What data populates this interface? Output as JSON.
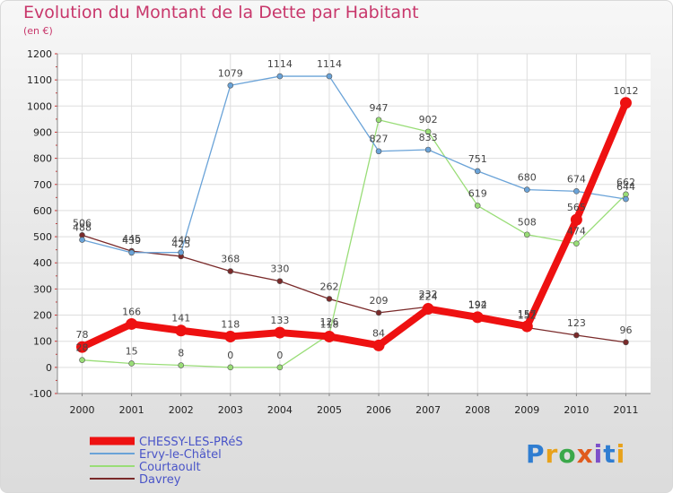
{
  "title": "Evolution du Montant de la Dette par Habitant",
  "unit_label": "(en €)",
  "logo_text": "Proxiti",
  "chart_data": {
    "type": "line",
    "title": "Evolution du Montant de la Dette par Habitant",
    "ylabel": "(en €)",
    "xlabel": "",
    "x": [
      "2000",
      "2001",
      "2002",
      "2003",
      "2004",
      "2005",
      "2006",
      "2007",
      "2008",
      "2009",
      "2010",
      "2011"
    ],
    "ylim": [
      -100,
      1200
    ],
    "yticks": [
      -100,
      0,
      100,
      200,
      300,
      400,
      500,
      600,
      700,
      800,
      900,
      1000,
      1100,
      1200
    ],
    "grid": true,
    "legend": "bottom-left",
    "series": [
      {
        "name": "CHESSY-LES-PRéS",
        "color": "#ee1111",
        "values": [
          78,
          166,
          141,
          118,
          133,
          118,
          84,
          224,
          192,
          157,
          565,
          1012
        ]
      },
      {
        "name": "Ervy-le-Châtel",
        "color": "#6aa3d8",
        "values": [
          488,
          439,
          440,
          1079,
          1114,
          1114,
          827,
          833,
          751,
          680,
          674,
          644
        ]
      },
      {
        "name": "Courtaoult",
        "color": "#99dd77",
        "values": [
          28,
          15,
          8,
          0,
          0,
          126,
          947,
          902,
          619,
          508,
          474,
          662
        ]
      },
      {
        "name": "Davrey",
        "color": "#7a2a2a",
        "values": [
          506,
          445,
          425,
          368,
          330,
          262,
          209,
          232,
          194,
          152,
          123,
          96
        ]
      }
    ]
  }
}
